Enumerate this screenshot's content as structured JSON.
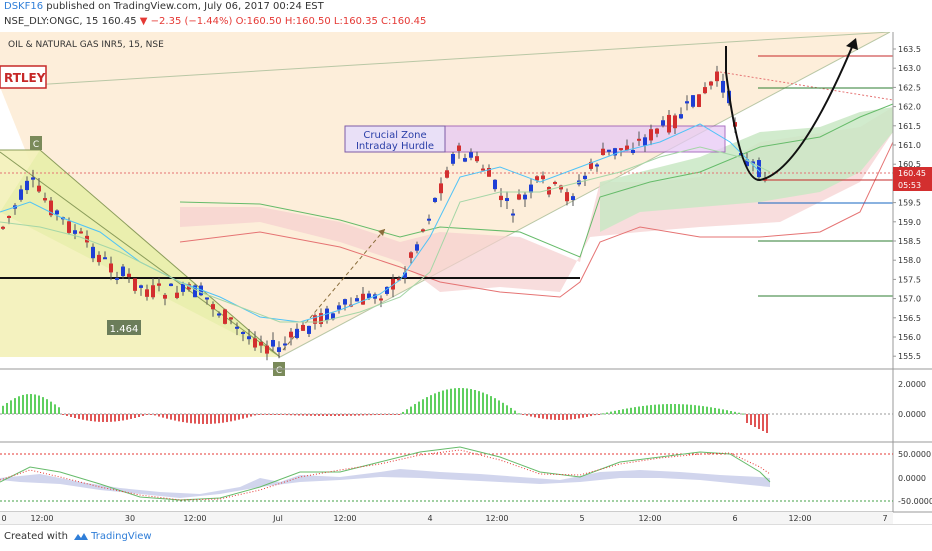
{
  "header": {
    "username": "DSKF16",
    "published_text": " published on TradingView.com, July 06, 2017 00:24 EST",
    "symbol_line": "NSE_DLY:ONGC, 15  160.45",
    "change_arrow": "▼",
    "change": "−2.35 (−1.44%)",
    "ohlc": " O:160.50 H:160.50 L:160.35 C:160.45"
  },
  "chart": {
    "title": "OIL & NATURAL GAS INR5, 15, NSE",
    "pattern_label": "RTLEY",
    "point_c_top": "C",
    "point_c_bottom": "C",
    "ratio_label": "1.464",
    "zone_line1": "Crucial Zone",
    "zone_line2": "Intraday Hurdle",
    "price_axis": [
      "163.5",
      "163.0",
      "162.5",
      "162.0",
      "161.5",
      "161.0",
      "160.5",
      "160.0",
      "159.5",
      "159.0",
      "158.5",
      "158.0",
      "157.5",
      "157.0",
      "156.5",
      "156.0",
      "155.5"
    ],
    "last_price": "160.45",
    "countdown": "05:53",
    "macd_axis": [
      "2.0000",
      "0.0000"
    ],
    "rsi_axis": [
      "50.0000",
      "0.0000",
      "-50.0000"
    ],
    "time_axis": [
      "0",
      "12:00",
      "30",
      "12:00",
      "Jul",
      "12:00",
      "4",
      "12:00",
      "5",
      "12:00",
      "6",
      "12:00",
      "7"
    ],
    "colors": {
      "up": "#1e3fd6",
      "down": "#d32f2f",
      "cloud_green": "#c9e8c4",
      "cloud_red": "#f5cfcf"
    }
  },
  "footer": {
    "created": "Created with",
    "brand": "TradingView"
  }
}
